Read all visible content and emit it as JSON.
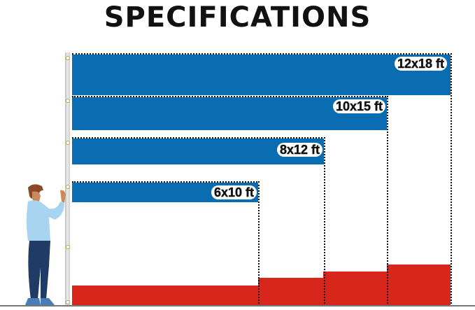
{
  "title": "SPECIFICATIONS",
  "flags": [
    {
      "size": "12x18 ft"
    },
    {
      "size": "10x15 ft"
    },
    {
      "size": "8x12 ft"
    },
    {
      "size": "6x10 ft"
    }
  ],
  "colors": {
    "blue": "#0a6db1",
    "red": "#d9261c"
  }
}
